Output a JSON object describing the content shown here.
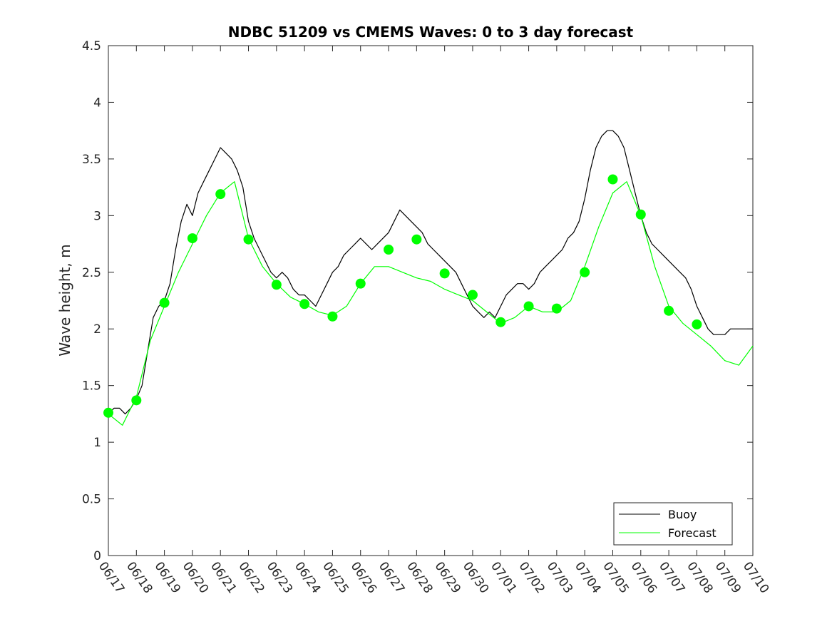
{
  "chart_data": {
    "type": "line",
    "title": "NDBC 51209 vs CMEMS Waves: 0 to 3 day forecast",
    "ylabel": "Wave height, m",
    "xlabel": "",
    "xlim": [
      0,
      23
    ],
    "ylim": [
      0,
      4.5
    ],
    "yticks": [
      0,
      0.5,
      1,
      1.5,
      2,
      2.5,
      3,
      3.5,
      4,
      4.5
    ],
    "ytick_labels": [
      "0",
      "0.5",
      "1",
      "1.5",
      "2",
      "2.5",
      "3",
      "3.5",
      "4",
      "4.5"
    ],
    "xtick_labels": [
      "06/17",
      "06/18",
      "06/19",
      "06/20",
      "06/21",
      "06/22",
      "06/23",
      "06/24",
      "06/25",
      "06/26",
      "06/27",
      "06/28",
      "06/29",
      "06/30",
      "07/01",
      "07/02",
      "07/03",
      "07/04",
      "07/05",
      "07/06",
      "07/07",
      "07/08",
      "07/09",
      "07/10"
    ],
    "grid": false,
    "legend": {
      "position": "bottom-right",
      "entries": [
        "Buoy",
        "Forecast"
      ]
    },
    "colors": {
      "buoy": "#000000",
      "forecast": "#00ff00"
    },
    "series": [
      {
        "name": "Buoy",
        "x": [
          0.0,
          0.2,
          0.4,
          0.6,
          0.8,
          1.0,
          1.2,
          1.4,
          1.6,
          1.8,
          2.0,
          2.2,
          2.4,
          2.6,
          2.8,
          3.0,
          3.2,
          3.4,
          3.6,
          3.8,
          4.0,
          4.2,
          4.4,
          4.6,
          4.8,
          5.0,
          5.2,
          5.4,
          5.6,
          5.8,
          6.0,
          6.2,
          6.4,
          6.6,
          6.8,
          7.0,
          7.2,
          7.4,
          7.6,
          7.8,
          8.0,
          8.2,
          8.4,
          8.6,
          8.8,
          9.0,
          9.2,
          9.4,
          9.6,
          9.8,
          10.0,
          10.2,
          10.4,
          10.6,
          10.8,
          11.0,
          11.2,
          11.4,
          11.6,
          11.8,
          12.0,
          12.2,
          12.4,
          12.6,
          12.8,
          13.0,
          13.2,
          13.4,
          13.6,
          13.8,
          14.0,
          14.2,
          14.4,
          14.6,
          14.8,
          15.0,
          15.2,
          15.4,
          15.6,
          15.8,
          16.0,
          16.2,
          16.4,
          16.6,
          16.8,
          17.0,
          17.2,
          17.4,
          17.6,
          17.8,
          18.0,
          18.2,
          18.4,
          18.6,
          18.8,
          19.0,
          19.2,
          19.4,
          19.6,
          19.8,
          20.0,
          20.2,
          20.4,
          20.6,
          20.8,
          21.0,
          21.2,
          21.4,
          21.6,
          21.8,
          22.0,
          22.2,
          22.4,
          22.6,
          22.8,
          23.0
        ],
        "y": [
          1.25,
          1.3,
          1.3,
          1.25,
          1.3,
          1.38,
          1.5,
          1.8,
          2.1,
          2.2,
          2.25,
          2.4,
          2.7,
          2.95,
          3.1,
          3.0,
          3.2,
          3.3,
          3.4,
          3.5,
          3.6,
          3.55,
          3.5,
          3.4,
          3.25,
          2.95,
          2.8,
          2.7,
          2.6,
          2.5,
          2.45,
          2.5,
          2.45,
          2.35,
          2.3,
          2.3,
          2.25,
          2.2,
          2.3,
          2.4,
          2.5,
          2.55,
          2.65,
          2.7,
          2.75,
          2.8,
          2.75,
          2.7,
          2.75,
          2.8,
          2.85,
          2.95,
          3.05,
          3.0,
          2.95,
          2.9,
          2.85,
          2.75,
          2.7,
          2.65,
          2.6,
          2.55,
          2.5,
          2.4,
          2.3,
          2.2,
          2.15,
          2.1,
          2.15,
          2.1,
          2.2,
          2.3,
          2.35,
          2.4,
          2.4,
          2.35,
          2.4,
          2.5,
          2.55,
          2.6,
          2.65,
          2.7,
          2.8,
          2.85,
          2.95,
          3.15,
          3.4,
          3.6,
          3.7,
          3.75,
          3.75,
          3.7,
          3.6,
          3.4,
          3.2,
          3.0,
          2.85,
          2.75,
          2.7,
          2.65,
          2.6,
          2.55,
          2.5,
          2.45,
          2.35,
          2.2,
          2.1,
          2.0,
          1.95,
          1.95,
          1.95,
          2.0,
          2.0,
          2.0,
          2.0,
          2.0
        ]
      },
      {
        "name": "Forecast",
        "x": [
          0.0,
          0.5,
          1.0,
          1.5,
          2.0,
          2.5,
          3.0,
          3.5,
          4.0,
          4.5,
          5.0,
          5.5,
          6.0,
          6.5,
          7.0,
          7.5,
          8.0,
          8.5,
          9.0,
          9.5,
          10.0,
          10.5,
          11.0,
          11.5,
          12.0,
          12.5,
          13.0,
          13.5,
          14.0,
          14.5,
          15.0,
          15.5,
          16.0,
          16.5,
          17.0,
          17.5,
          18.0,
          18.5,
          19.0,
          19.5,
          20.0,
          20.5,
          21.0,
          21.5,
          22.0,
          22.5,
          23.0
        ],
        "y": [
          1.25,
          1.15,
          1.4,
          1.9,
          2.2,
          2.5,
          2.75,
          3.0,
          3.2,
          3.3,
          2.8,
          2.55,
          2.4,
          2.28,
          2.22,
          2.15,
          2.12,
          2.2,
          2.4,
          2.55,
          2.55,
          2.5,
          2.45,
          2.42,
          2.35,
          2.3,
          2.25,
          2.15,
          2.05,
          2.1,
          2.2,
          2.15,
          2.15,
          2.25,
          2.55,
          2.9,
          3.2,
          3.3,
          3.0,
          2.55,
          2.2,
          2.05,
          1.95,
          1.85,
          1.72,
          1.68,
          1.85
        ]
      }
    ],
    "forecast_markers": {
      "x": [
        0,
        1,
        2,
        3,
        4,
        5,
        6,
        7,
        8,
        9,
        10,
        11,
        12,
        13,
        14,
        15,
        16,
        17,
        18,
        19,
        20,
        21
      ],
      "y": [
        1.26,
        1.37,
        2.23,
        2.8,
        3.19,
        2.79,
        2.39,
        2.22,
        2.11,
        2.4,
        2.7,
        2.79,
        2.49,
        2.3,
        2.06,
        2.2,
        2.18,
        2.5,
        3.32,
        3.01,
        2.16,
        2.04
      ]
    }
  }
}
